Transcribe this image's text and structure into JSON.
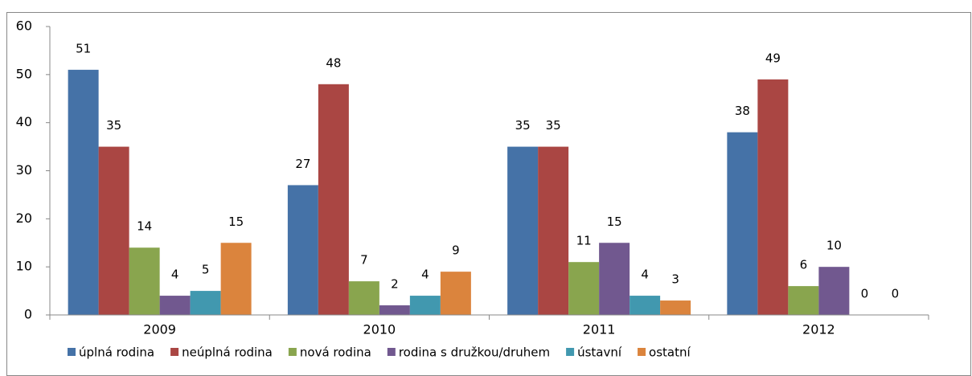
{
  "chart_data": {
    "type": "bar",
    "categories": [
      "2009",
      "2010",
      "2011",
      "2012"
    ],
    "series": [
      {
        "name": "úplná rodina",
        "color": "#4572a7",
        "values": [
          51,
          27,
          35,
          38
        ]
      },
      {
        "name": "neúplná rodina",
        "color": "#aa4643",
        "values": [
          35,
          48,
          35,
          49
        ]
      },
      {
        "name": "nová rodina",
        "color": "#89a54e",
        "values": [
          14,
          7,
          11,
          6
        ]
      },
      {
        "name": "rodina s družkou/druhem",
        "color": "#71588f",
        "values": [
          4,
          2,
          15,
          10
        ]
      },
      {
        "name": "ústavní",
        "color": "#4198af",
        "values": [
          5,
          4,
          4,
          0
        ]
      },
      {
        "name": "ostatní",
        "color": "#db843d",
        "values": [
          15,
          9,
          3,
          0
        ]
      }
    ],
    "ylim": [
      0,
      60
    ],
    "yticks": [
      0,
      10,
      20,
      30,
      40,
      50,
      60
    ],
    "grid": false,
    "legend": "bottom"
  }
}
